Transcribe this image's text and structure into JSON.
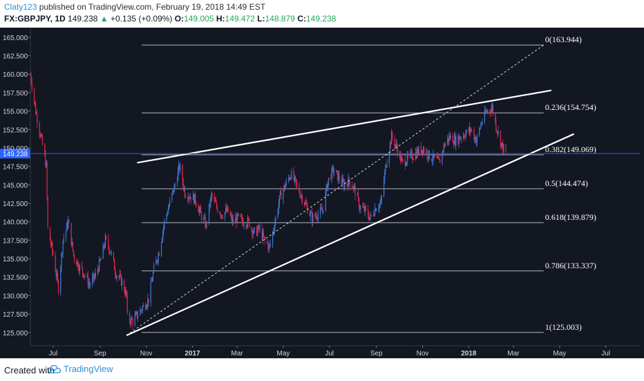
{
  "header": {
    "author": "Claty123",
    "published": " published on TradingView.com, February 19, 2018 14:49 EST",
    "symbol": "FX:GBPJPY, 1D",
    "price": "149.238",
    "change": "+0.135 (+0.09%)",
    "o_label": "O:",
    "o_value": "149.005",
    "h_label": "H:",
    "h_value": "149.472",
    "l_label": "L:",
    "l_value": "148.879",
    "c_label": "C:",
    "c_value": "149.238"
  },
  "footer": {
    "created_with": "Created with",
    "brand": "TradingView",
    "logo_icon": "tradingview-cloud-icon"
  },
  "colors": {
    "background": "#131722",
    "bull": "#3d7bd9",
    "bear": "#e0284a",
    "fib_line": "#d0d3da",
    "trend_line": "#ffffff",
    "price_line": "#2962ff",
    "price_tag": "#2962ff"
  },
  "chart_data": {
    "type": "candlestick",
    "symbol": "FX:GBPJPY",
    "timeframe": "1D",
    "ylim": [
      123.2,
      166.3
    ],
    "y_ticks": [
      125,
      127.5,
      130,
      132.5,
      135,
      137.5,
      140,
      142.5,
      145,
      147.5,
      150,
      152.5,
      155,
      157.5,
      160,
      162.5,
      165
    ],
    "y_tick_labels": [
      "125.000",
      "127.500",
      "130.000",
      "132.500",
      "135.000",
      "137.500",
      "140.000",
      "142.500",
      "145.000",
      "147.500",
      "150.000",
      "152.500",
      "155.000",
      "157.500",
      "160.000",
      "162.500",
      "165.000"
    ],
    "x_range": [
      "2016-06-01",
      "2018-08-15"
    ],
    "x_ticks": [
      {
        "date": "2016-07-01",
        "label": "Jul",
        "bold": false
      },
      {
        "date": "2016-09-01",
        "label": "Sep",
        "bold": false
      },
      {
        "date": "2016-11-01",
        "label": "Nov",
        "bold": false
      },
      {
        "date": "2017-01-01",
        "label": "2017",
        "bold": true
      },
      {
        "date": "2017-03-01",
        "label": "Mar",
        "bold": false
      },
      {
        "date": "2017-05-01",
        "label": "May",
        "bold": false
      },
      {
        "date": "2017-07-01",
        "label": "Jul",
        "bold": false
      },
      {
        "date": "2017-09-01",
        "label": "Sep",
        "bold": false
      },
      {
        "date": "2017-11-01",
        "label": "Nov",
        "bold": false
      },
      {
        "date": "2018-01-01",
        "label": "2018",
        "bold": true
      },
      {
        "date": "2018-03-01",
        "label": "Mar",
        "bold": false
      },
      {
        "date": "2018-05-01",
        "label": "May",
        "bold": false
      },
      {
        "date": "2018-07-01",
        "label": "Jul",
        "bold": false
      }
    ],
    "last_price": 149.238,
    "last_price_label": "149.238",
    "price_path": [
      [
        "2016-06-01",
        160.0
      ],
      [
        "2016-06-08",
        155.0
      ],
      [
        "2016-06-15",
        151.5
      ],
      [
        "2016-06-22",
        147.5
      ],
      [
        "2016-06-24",
        139.0
      ],
      [
        "2016-07-01",
        135.5
      ],
      [
        "2016-07-08",
        131.0
      ],
      [
        "2016-07-14",
        137.5
      ],
      [
        "2016-07-21",
        140.0
      ],
      [
        "2016-07-28",
        135.5
      ],
      [
        "2016-08-04",
        134.0
      ],
      [
        "2016-08-11",
        133.0
      ],
      [
        "2016-08-18",
        131.5
      ],
      [
        "2016-08-25",
        132.5
      ],
      [
        "2016-09-01",
        134.5
      ],
      [
        "2016-09-08",
        137.5
      ],
      [
        "2016-09-15",
        136.0
      ],
      [
        "2016-09-22",
        133.0
      ],
      [
        "2016-09-29",
        132.0
      ],
      [
        "2016-10-06",
        130.0
      ],
      [
        "2016-10-07",
        127.0
      ],
      [
        "2016-10-14",
        126.5
      ],
      [
        "2016-10-21",
        127.5
      ],
      [
        "2016-10-28",
        128.5
      ],
      [
        "2016-11-04",
        129.5
      ],
      [
        "2016-11-11",
        133.5
      ],
      [
        "2016-11-18",
        136.0
      ],
      [
        "2016-11-25",
        140.0
      ],
      [
        "2016-12-02",
        142.5
      ],
      [
        "2016-12-09",
        145.0
      ],
      [
        "2016-12-15",
        147.5
      ],
      [
        "2016-12-22",
        144.0
      ],
      [
        "2016-12-29",
        143.5
      ],
      [
        "2017-01-05",
        143.0
      ],
      [
        "2017-01-12",
        141.0
      ],
      [
        "2017-01-19",
        139.5
      ],
      [
        "2017-01-26",
        143.5
      ],
      [
        "2017-02-02",
        142.0
      ],
      [
        "2017-02-09",
        141.0
      ],
      [
        "2017-02-16",
        141.5
      ],
      [
        "2017-02-23",
        140.0
      ],
      [
        "2017-03-02",
        140.5
      ],
      [
        "2017-03-09",
        140.0
      ],
      [
        "2017-03-16",
        140.0
      ],
      [
        "2017-03-23",
        138.5
      ],
      [
        "2017-03-30",
        139.0
      ],
      [
        "2017-04-06",
        137.5
      ],
      [
        "2017-04-13",
        136.5
      ],
      [
        "2017-04-20",
        140.0
      ],
      [
        "2017-04-27",
        143.5
      ],
      [
        "2017-05-04",
        145.0
      ],
      [
        "2017-05-11",
        146.5
      ],
      [
        "2017-05-18",
        145.0
      ],
      [
        "2017-05-25",
        143.5
      ],
      [
        "2017-06-01",
        142.0
      ],
      [
        "2017-06-08",
        140.5
      ],
      [
        "2017-06-15",
        141.0
      ],
      [
        "2017-06-22",
        141.5
      ],
      [
        "2017-06-29",
        145.5
      ],
      [
        "2017-07-06",
        147.0
      ],
      [
        "2017-07-13",
        146.0
      ],
      [
        "2017-07-20",
        145.0
      ],
      [
        "2017-07-27",
        145.5
      ],
      [
        "2017-08-03",
        144.5
      ],
      [
        "2017-08-10",
        142.0
      ],
      [
        "2017-08-17",
        141.5
      ],
      [
        "2017-08-24",
        140.5
      ],
      [
        "2017-08-31",
        142.0
      ],
      [
        "2017-09-07",
        142.5
      ],
      [
        "2017-09-14",
        148.0
      ],
      [
        "2017-09-21",
        151.5
      ],
      [
        "2017-09-28",
        150.0
      ],
      [
        "2017-10-05",
        148.0
      ],
      [
        "2017-10-12",
        148.5
      ],
      [
        "2017-10-19",
        149.0
      ],
      [
        "2017-10-26",
        149.5
      ],
      [
        "2017-11-02",
        150.0
      ],
      [
        "2017-11-09",
        149.0
      ],
      [
        "2017-11-16",
        148.5
      ],
      [
        "2017-11-23",
        148.0
      ],
      [
        "2017-11-30",
        150.5
      ],
      [
        "2017-12-07",
        151.5
      ],
      [
        "2017-12-14",
        151.0
      ],
      [
        "2017-12-21",
        151.5
      ],
      [
        "2017-12-28",
        152.0
      ],
      [
        "2018-01-04",
        152.5
      ],
      [
        "2018-01-11",
        151.0
      ],
      [
        "2018-01-18",
        153.5
      ],
      [
        "2018-01-25",
        155.0
      ],
      [
        "2018-02-01",
        155.5
      ],
      [
        "2018-02-06",
        153.0
      ],
      [
        "2018-02-09",
        152.0
      ],
      [
        "2018-02-13",
        150.5
      ],
      [
        "2018-02-19",
        149.238
      ]
    ],
    "trend_lines": [
      {
        "name": "upper-channel-line",
        "from": [
          "2016-10-20",
          148.0
        ],
        "to": [
          "2018-04-20",
          157.8
        ],
        "style": "solid"
      },
      {
        "name": "lower-channel-line",
        "from": [
          "2016-10-06",
          124.6
        ],
        "to": [
          "2018-05-20",
          151.9
        ],
        "style": "solid"
      },
      {
        "name": "fib-diagonal-line",
        "from": [
          "2016-10-06",
          124.6
        ],
        "to": [
          "2018-04-10",
          163.944
        ],
        "style": "dashed"
      }
    ],
    "fib_levels": [
      {
        "ratio": "0",
        "price": 163.944,
        "label": "0(163.944)"
      },
      {
        "ratio": "0.236",
        "price": 154.754,
        "label": "0.236(154.754)"
      },
      {
        "ratio": "0.382",
        "price": 149.069,
        "label": "0.382(149.069)"
      },
      {
        "ratio": "0.5",
        "price": 144.474,
        "label": "0.5(144.474)"
      },
      {
        "ratio": "0.618",
        "price": 139.879,
        "label": "0.618(139.879)"
      },
      {
        "ratio": "0.786",
        "price": 133.337,
        "label": "0.786(133.337)"
      },
      {
        "ratio": "1",
        "price": 125.003,
        "label": "1(125.003)"
      }
    ],
    "fib_range": [
      "2016-10-26",
      "2018-04-10"
    ]
  }
}
